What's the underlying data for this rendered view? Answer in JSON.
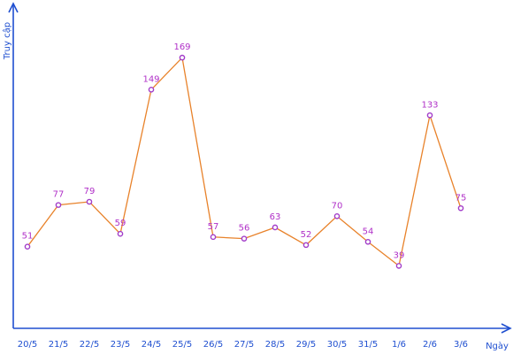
{
  "chart_data": {
    "type": "line",
    "title": "",
    "xlabel": "Ngày",
    "ylabel": "Truy cập",
    "categories": [
      "20/5",
      "21/5",
      "22/5",
      "23/5",
      "24/5",
      "25/5",
      "26/5",
      "27/5",
      "28/5",
      "29/5",
      "30/5",
      "31/5",
      "1/6",
      "2/6",
      "3/6"
    ],
    "series": [
      {
        "values": [
          51,
          77,
          79,
          59,
          149,
          169,
          57,
          56,
          63,
          52,
          70,
          54,
          39,
          133,
          75
        ]
      }
    ],
    "ylim": [
      0,
      180
    ],
    "grid": false,
    "legend": "none",
    "colors": {
      "axis": "#1f4fd0",
      "line": "#e8822a",
      "marker": "#a23cc9",
      "data_label": "#b030c8"
    }
  }
}
